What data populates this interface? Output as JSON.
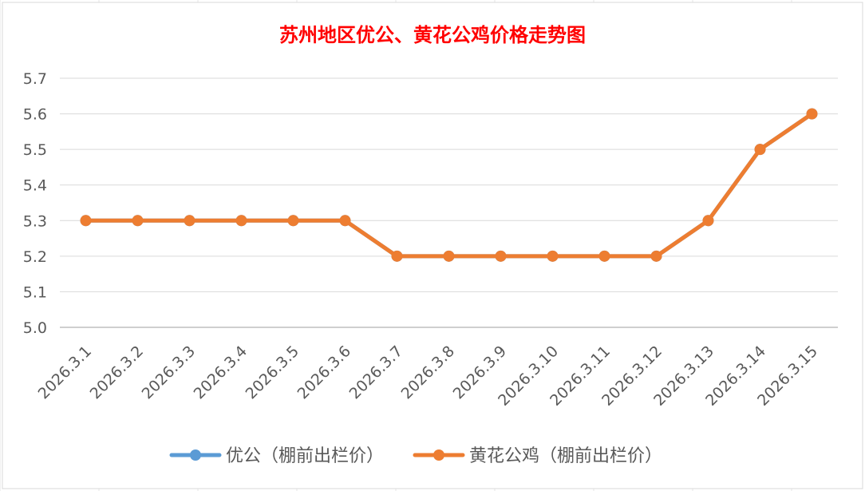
{
  "chart_data": {
    "type": "line",
    "title": "苏州地区优公、黄花公鸡价格走势图",
    "categories": [
      "2026.3.1",
      "2026.3.2",
      "2026.3.3",
      "2026.3.4",
      "2026.3.5",
      "2026.3.6",
      "2026.3.7",
      "2026.3.8",
      "2026.3.9",
      "2026.3.10",
      "2026.3.11",
      "2026.3.12",
      "2026.3.13",
      "2026.3.14",
      "2026.3.15"
    ],
    "series": [
      {
        "name": "优公（棚前出栏价）",
        "color": "#5B9BD5",
        "values": [
          5.3,
          5.3,
          5.3,
          5.3,
          5.3,
          5.3,
          5.2,
          5.2,
          5.2,
          5.2,
          5.2,
          5.2,
          5.3,
          5.5,
          5.6
        ]
      },
      {
        "name": "黄花公鸡（棚前出栏价）",
        "color": "#ED7D31",
        "values": [
          5.3,
          5.3,
          5.3,
          5.3,
          5.3,
          5.3,
          5.2,
          5.2,
          5.2,
          5.2,
          5.2,
          5.2,
          5.3,
          5.5,
          5.6
        ]
      }
    ],
    "ylim": [
      5.0,
      5.7
    ],
    "yticks": [
      "5.0",
      "5.1",
      "5.2",
      "5.3",
      "5.4",
      "5.5",
      "5.6",
      "5.7"
    ],
    "title_color": "#FF0000",
    "grid": true,
    "legend_position": "bottom"
  }
}
